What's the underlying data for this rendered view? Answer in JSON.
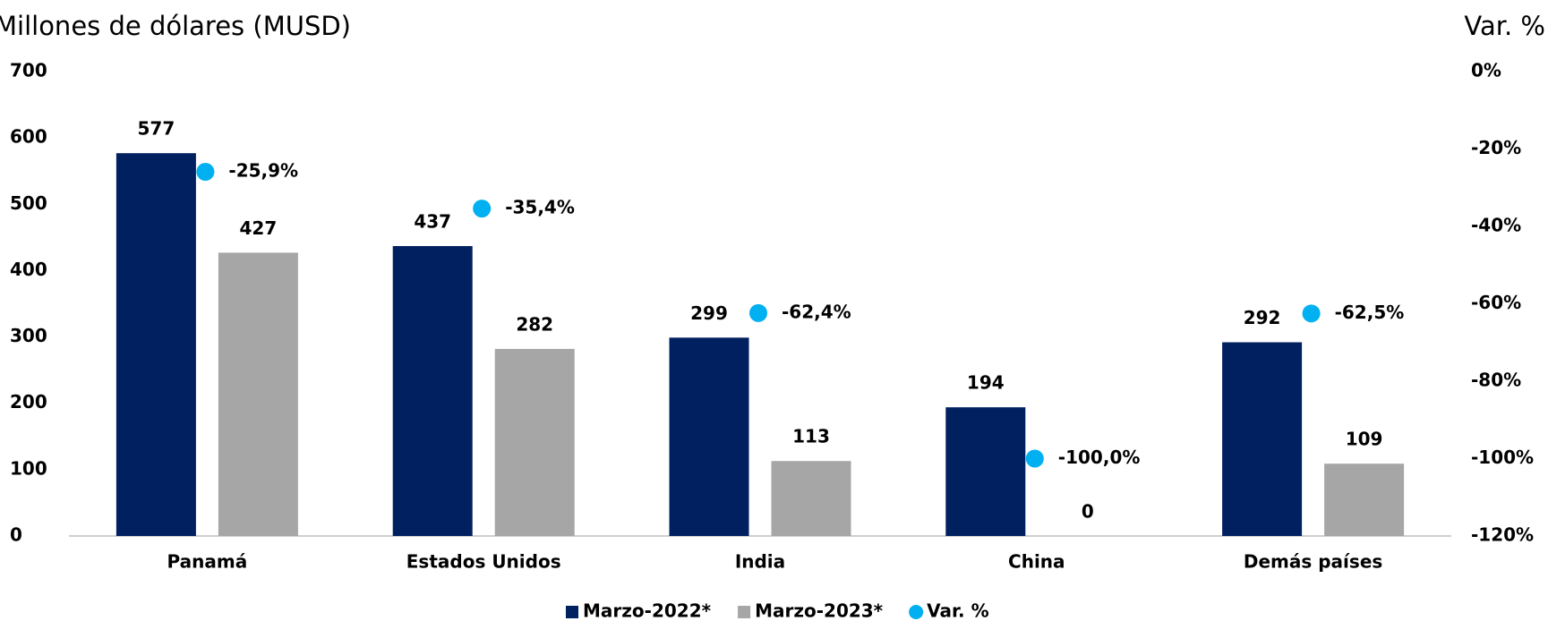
{
  "chart_data": {
    "type": "bar",
    "y_label": "Millones de dólares (MUSD)",
    "y2_label": "Var. %",
    "categories": [
      "Panamá",
      "Estados Unidos",
      "India",
      "China",
      "Demás países"
    ],
    "series": [
      {
        "name": "Marzo-2022*",
        "color": "#002060",
        "values": [
          577,
          437,
          299,
          194,
          292
        ]
      },
      {
        "name": "Marzo-2023*",
        "color": "#a6a6a6",
        "values": [
          427,
          282,
          113,
          0,
          109
        ]
      },
      {
        "name": "Var. %",
        "color": "#00b0f0",
        "type": "scatter",
        "axis": "y2",
        "values": [
          -25.9,
          -35.4,
          -62.4,
          -100.0,
          -62.5
        ],
        "value_labels": [
          "-25,9%",
          "-35,4%",
          "-62,4%",
          "-100,0%",
          "-62,5%"
        ]
      }
    ],
    "ylim": [
      0,
      700
    ],
    "yticks": [
      0,
      100,
      200,
      300,
      400,
      500,
      600,
      700
    ],
    "y2lim": [
      -120,
      0
    ],
    "y2ticks": [
      {
        "value": -120,
        "label": "-120%"
      },
      {
        "value": -100,
        "label": "-100%"
      },
      {
        "value": -80,
        "label": "-80%"
      },
      {
        "value": -60,
        "label": "-60%"
      },
      {
        "value": -40,
        "label": "-40%"
      },
      {
        "value": -20,
        "label": "-20%"
      },
      {
        "value": 0,
        "label": "0%"
      }
    ],
    "grid": false,
    "legend": "bottom"
  }
}
